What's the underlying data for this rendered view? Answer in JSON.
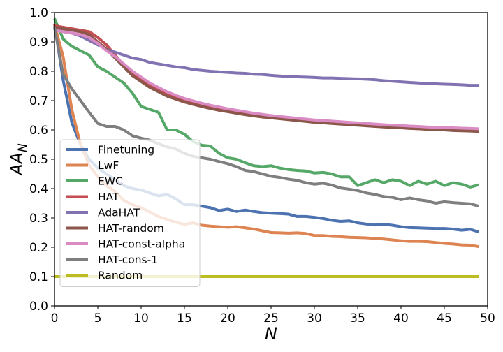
{
  "chart_data": {
    "type": "line",
    "title": "",
    "xlabel": "N",
    "ylabel_base": "AA",
    "ylabel_sub": "N",
    "xlim": [
      0,
      50
    ],
    "ylim": [
      0.0,
      1.0
    ],
    "xticks": [
      0,
      5,
      10,
      15,
      20,
      25,
      30,
      35,
      40,
      45,
      50
    ],
    "yticks": [
      0.0,
      0.1,
      0.2,
      0.3,
      0.4,
      0.5,
      0.6,
      0.7,
      0.8,
      0.9,
      1.0
    ],
    "ytick_labels": [
      "0.0",
      "0.1",
      "0.2",
      "0.3",
      "0.4",
      "0.5",
      "0.6",
      "0.7",
      "0.8",
      "0.9",
      "1.0"
    ],
    "grid": false,
    "legend_position": "lower-left",
    "series": [
      {
        "name": "Finetuning",
        "color": "#4c72b0",
        "x": [
          0,
          1,
          2,
          3,
          4,
          5,
          6,
          7,
          8,
          9,
          10,
          11,
          12,
          13,
          14,
          15,
          16,
          17,
          18,
          19,
          20,
          21,
          22,
          23,
          24,
          25,
          26,
          27,
          28,
          29,
          30,
          31,
          32,
          33,
          34,
          35,
          36,
          37,
          38,
          39,
          40,
          41,
          42,
          43,
          44,
          45,
          46,
          47,
          48,
          49
        ],
        "y": [
          0.96,
          0.77,
          0.625,
          0.55,
          0.5,
          0.47,
          0.45,
          0.43,
          0.41,
          0.4,
          0.395,
          0.385,
          0.375,
          0.38,
          0.365,
          0.345,
          0.345,
          0.34,
          0.335,
          0.325,
          0.33,
          0.322,
          0.327,
          0.322,
          0.318,
          0.316,
          0.315,
          0.313,
          0.305,
          0.305,
          0.302,
          0.298,
          0.292,
          0.288,
          0.29,
          0.283,
          0.279,
          0.276,
          0.278,
          0.275,
          0.27,
          0.267,
          0.266,
          0.265,
          0.264,
          0.264,
          0.262,
          0.258,
          0.261,
          0.252
        ]
      },
      {
        "name": "LwF",
        "color": "#dd8452",
        "x": [
          0,
          1,
          2,
          3,
          4,
          5,
          6,
          7,
          8,
          9,
          10,
          11,
          12,
          13,
          14,
          15,
          16,
          17,
          18,
          19,
          20,
          21,
          22,
          23,
          24,
          25,
          26,
          27,
          28,
          29,
          30,
          31,
          32,
          33,
          34,
          35,
          36,
          37,
          38,
          39,
          40,
          41,
          42,
          43,
          44,
          45,
          46,
          47,
          48,
          49
        ],
        "y": [
          0.96,
          0.85,
          0.67,
          0.55,
          0.48,
          0.44,
          0.41,
          0.39,
          0.36,
          0.345,
          0.335,
          0.32,
          0.305,
          0.295,
          0.285,
          0.278,
          0.283,
          0.275,
          0.272,
          0.27,
          0.268,
          0.27,
          0.266,
          0.262,
          0.256,
          0.25,
          0.249,
          0.248,
          0.249,
          0.247,
          0.24,
          0.24,
          0.237,
          0.236,
          0.234,
          0.233,
          0.232,
          0.23,
          0.228,
          0.225,
          0.222,
          0.22,
          0.22,
          0.219,
          0.216,
          0.213,
          0.211,
          0.208,
          0.207,
          0.202
        ]
      },
      {
        "name": "EWC",
        "color": "#55a868",
        "x": [
          0,
          1,
          2,
          3,
          4,
          5,
          6,
          7,
          8,
          9,
          10,
          11,
          12,
          13,
          14,
          15,
          16,
          17,
          18,
          19,
          20,
          21,
          22,
          23,
          24,
          25,
          26,
          27,
          28,
          29,
          30,
          31,
          32,
          33,
          34,
          35,
          36,
          37,
          38,
          39,
          40,
          41,
          42,
          43,
          44,
          45,
          46,
          47,
          48,
          49
        ],
        "y": [
          0.98,
          0.91,
          0.885,
          0.87,
          0.855,
          0.815,
          0.8,
          0.78,
          0.76,
          0.725,
          0.68,
          0.67,
          0.66,
          0.6,
          0.6,
          0.585,
          0.56,
          0.548,
          0.545,
          0.52,
          0.505,
          0.5,
          0.488,
          0.478,
          0.475,
          0.478,
          0.47,
          0.465,
          0.462,
          0.46,
          0.453,
          0.455,
          0.45,
          0.44,
          0.44,
          0.41,
          0.42,
          0.43,
          0.42,
          0.43,
          0.425,
          0.41,
          0.425,
          0.415,
          0.425,
          0.41,
          0.42,
          0.415,
          0.405,
          0.413
        ]
      },
      {
        "name": "HAT",
        "color": "#c44e52",
        "x": [
          0,
          1,
          2,
          3,
          4,
          5,
          6,
          7,
          8,
          9,
          10,
          11,
          12,
          13,
          14,
          15,
          16,
          17,
          18,
          19,
          20,
          21,
          22,
          23,
          24,
          25,
          26,
          27,
          28,
          29,
          30,
          31,
          32,
          33,
          34,
          35,
          36,
          37,
          38,
          39,
          40,
          41,
          42,
          43,
          44,
          45,
          46,
          47,
          48,
          49
        ],
        "y": [
          0.955,
          0.95,
          0.945,
          0.94,
          0.935,
          0.915,
          0.89,
          0.855,
          0.82,
          0.79,
          0.77,
          0.75,
          0.735,
          0.72,
          0.71,
          0.7,
          0.692,
          0.684,
          0.677,
          0.671,
          0.666,
          0.661,
          0.656,
          0.652,
          0.648,
          0.645,
          0.641,
          0.638,
          0.635,
          0.632,
          0.629,
          0.627,
          0.625,
          0.623,
          0.621,
          0.619,
          0.617,
          0.615,
          0.613,
          0.611,
          0.61,
          0.608,
          0.607,
          0.605,
          0.604,
          0.602,
          0.601,
          0.6,
          0.599,
          0.598
        ]
      },
      {
        "name": "AdaHAT",
        "color": "#8172b2",
        "x": [
          0,
          1,
          2,
          3,
          4,
          5,
          6,
          7,
          8,
          9,
          10,
          11,
          12,
          13,
          14,
          15,
          16,
          17,
          18,
          19,
          20,
          21,
          22,
          23,
          24,
          25,
          26,
          27,
          28,
          29,
          30,
          31,
          32,
          33,
          34,
          35,
          36,
          37,
          38,
          39,
          40,
          41,
          42,
          43,
          44,
          45,
          46,
          47,
          48,
          49
        ],
        "y": [
          0.945,
          0.935,
          0.93,
          0.92,
          0.905,
          0.89,
          0.875,
          0.865,
          0.855,
          0.845,
          0.84,
          0.83,
          0.825,
          0.82,
          0.815,
          0.812,
          0.806,
          0.803,
          0.8,
          0.798,
          0.796,
          0.794,
          0.793,
          0.79,
          0.789,
          0.786,
          0.784,
          0.782,
          0.781,
          0.78,
          0.779,
          0.777,
          0.777,
          0.776,
          0.775,
          0.774,
          0.773,
          0.771,
          0.768,
          0.766,
          0.764,
          0.762,
          0.76,
          0.758,
          0.757,
          0.756,
          0.755,
          0.754,
          0.752,
          0.752
        ]
      },
      {
        "name": "HAT-random",
        "color": "#8c564b",
        "x": [
          0,
          1,
          2,
          3,
          4,
          5,
          6,
          7,
          8,
          9,
          10,
          11,
          12,
          13,
          14,
          15,
          16,
          17,
          18,
          19,
          20,
          21,
          22,
          23,
          24,
          25,
          26,
          27,
          28,
          29,
          30,
          31,
          32,
          33,
          34,
          35,
          36,
          37,
          38,
          39,
          40,
          41,
          42,
          43,
          44,
          45,
          46,
          47,
          48,
          49
        ],
        "y": [
          0.95,
          0.945,
          0.94,
          0.935,
          0.925,
          0.9,
          0.875,
          0.845,
          0.815,
          0.785,
          0.765,
          0.745,
          0.73,
          0.715,
          0.705,
          0.695,
          0.687,
          0.68,
          0.673,
          0.667,
          0.662,
          0.657,
          0.652,
          0.648,
          0.644,
          0.641,
          0.638,
          0.635,
          0.632,
          0.629,
          0.626,
          0.624,
          0.622,
          0.62,
          0.618,
          0.616,
          0.614,
          0.612,
          0.61,
          0.608,
          0.607,
          0.605,
          0.604,
          0.602,
          0.601,
          0.6,
          0.598,
          0.597,
          0.596,
          0.595
        ]
      },
      {
        "name": "HAT-const-alpha",
        "color": "#da8bc3",
        "x": [
          0,
          1,
          2,
          3,
          4,
          5,
          6,
          7,
          8,
          9,
          10,
          11,
          12,
          13,
          14,
          15,
          16,
          17,
          18,
          19,
          20,
          21,
          22,
          23,
          24,
          25,
          26,
          27,
          28,
          29,
          30,
          31,
          32,
          33,
          34,
          35,
          36,
          37,
          38,
          39,
          40,
          41,
          42,
          43,
          44,
          45,
          46,
          47,
          48,
          49
        ],
        "y": [
          0.94,
          0.935,
          0.93,
          0.925,
          0.915,
          0.895,
          0.87,
          0.85,
          0.825,
          0.8,
          0.78,
          0.76,
          0.745,
          0.73,
          0.718,
          0.707,
          0.699,
          0.691,
          0.684,
          0.678,
          0.672,
          0.667,
          0.662,
          0.657,
          0.653,
          0.649,
          0.646,
          0.643,
          0.64,
          0.637,
          0.634,
          0.632,
          0.63,
          0.628,
          0.626,
          0.624,
          0.622,
          0.62,
          0.618,
          0.616,
          0.615,
          0.613,
          0.612,
          0.61,
          0.609,
          0.608,
          0.607,
          0.606,
          0.605,
          0.604
        ]
      },
      {
        "name": "HAT-cons-1",
        "color": "#7f7f7f",
        "x": [
          0,
          1,
          2,
          3,
          4,
          5,
          6,
          7,
          8,
          9,
          10,
          11,
          12,
          13,
          14,
          15,
          16,
          17,
          18,
          19,
          20,
          21,
          22,
          23,
          24,
          25,
          26,
          27,
          28,
          29,
          30,
          31,
          32,
          33,
          34,
          35,
          36,
          37,
          38,
          39,
          40,
          41,
          42,
          43,
          44,
          45,
          46,
          47,
          48,
          49
        ],
        "y": [
          0.95,
          0.79,
          0.74,
          0.7,
          0.66,
          0.622,
          0.612,
          0.612,
          0.6,
          0.58,
          0.572,
          0.565,
          0.553,
          0.542,
          0.535,
          0.52,
          0.51,
          0.505,
          0.5,
          0.492,
          0.485,
          0.475,
          0.462,
          0.458,
          0.45,
          0.442,
          0.438,
          0.432,
          0.428,
          0.42,
          0.415,
          0.418,
          0.412,
          0.402,
          0.398,
          0.393,
          0.385,
          0.38,
          0.373,
          0.37,
          0.362,
          0.368,
          0.362,
          0.358,
          0.35,
          0.355,
          0.352,
          0.35,
          0.348,
          0.34
        ]
      },
      {
        "name": "Random",
        "color": "#bcbd22",
        "x": [
          0,
          49
        ],
        "y": [
          0.1,
          0.1
        ]
      }
    ]
  }
}
